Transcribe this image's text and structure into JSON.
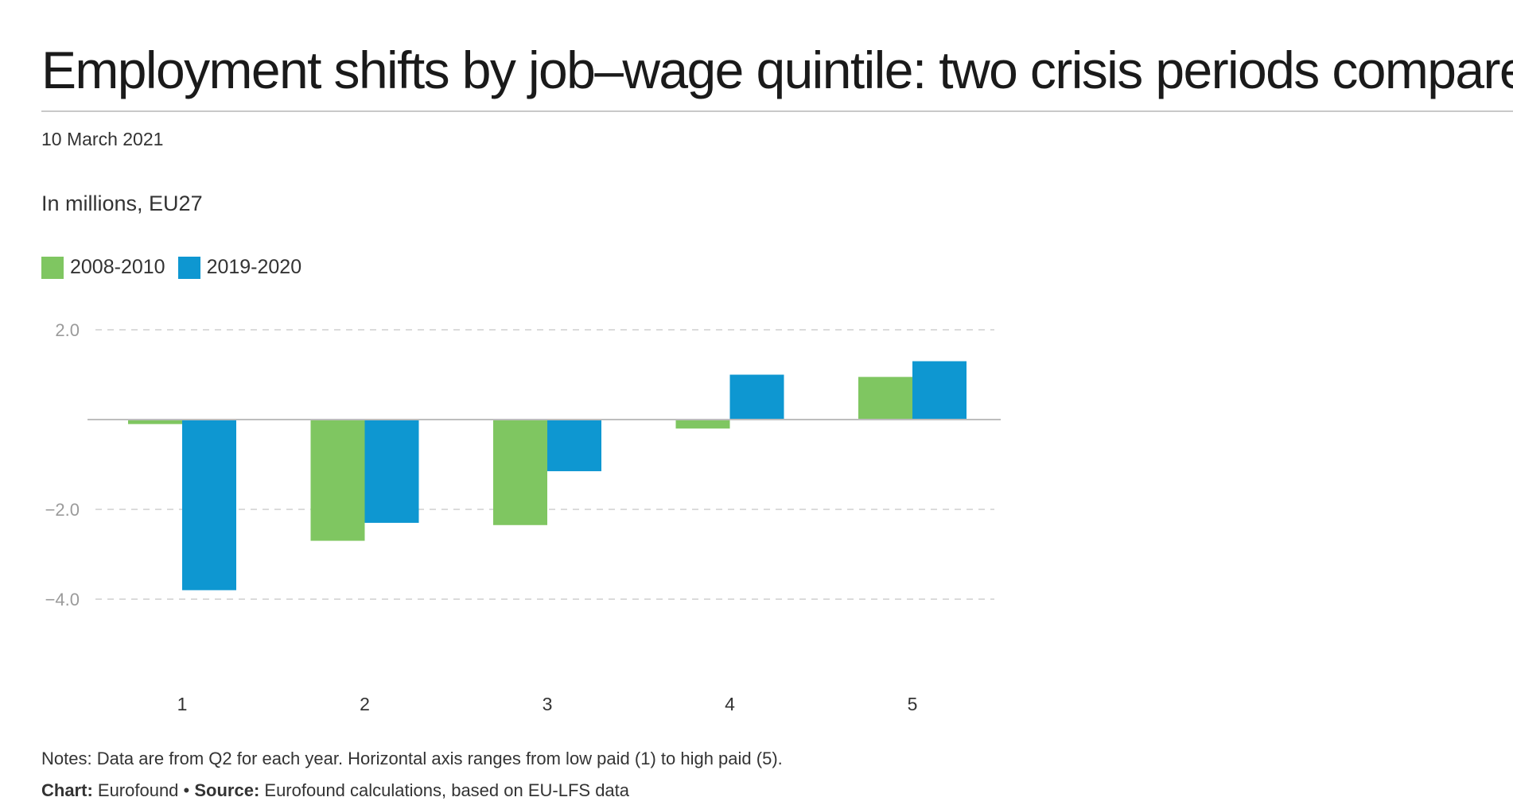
{
  "header": {
    "title": "Employment shifts by job–wage quintile: two crisis periods compared",
    "date": "10 March 2021",
    "subtitle": "In millions, EU27"
  },
  "legend": [
    {
      "label": "2008-2010",
      "color": "#7fc661"
    },
    {
      "label": "2019-2020",
      "color": "#0e97d1"
    }
  ],
  "chart_data": {
    "type": "bar",
    "categories": [
      "1",
      "2",
      "3",
      "4",
      "5"
    ],
    "series": [
      {
        "name": "2008-2010",
        "color": "#7fc661",
        "values": [
          -0.1,
          -2.7,
          -2.35,
          -0.2,
          0.95
        ]
      },
      {
        "name": "2019-2020",
        "color": "#0e97d1",
        "values": [
          -3.8,
          -2.3,
          -1.15,
          1.0,
          1.3
        ]
      }
    ],
    "yticks": [
      {
        "value": 2,
        "label": "2.0"
      },
      {
        "value": -2,
        "label": "−2.0"
      },
      {
        "value": -4,
        "label": "−4.0"
      }
    ],
    "ylim": [
      -5,
      2.2
    ],
    "grid": true,
    "legend_position": "top-left",
    "title": "",
    "xlabel": "",
    "ylabel": ""
  },
  "footer": {
    "notes": "Notes: Data are from Q2 for each year. Horizontal axis ranges from low paid (1) to high paid (5).",
    "chart_label": "Chart:",
    "chart_value": " Eurofound • ",
    "source_label": "Source:",
    "source_value": " Eurofound calculations, based on EU-LFS data"
  }
}
